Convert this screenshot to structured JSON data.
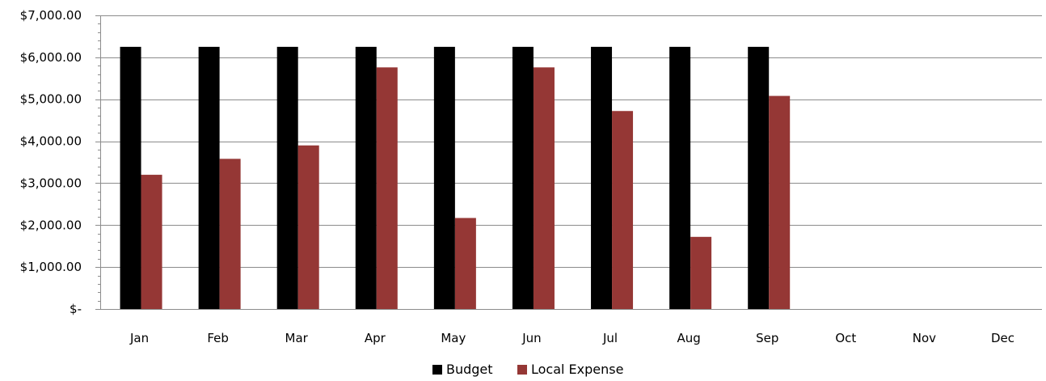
{
  "chart_data": {
    "type": "bar",
    "title": "",
    "xlabel": "",
    "ylabel": "",
    "categories": [
      "Jan",
      "Feb",
      "Mar",
      "Apr",
      "May",
      "Jun",
      "Jul",
      "Aug",
      "Sep",
      "Oct",
      "Nov",
      "Dec"
    ],
    "series": [
      {
        "name": "Budget",
        "color": "#000000",
        "values": [
          6250,
          6250,
          6250,
          6250,
          6250,
          6250,
          6250,
          6250,
          6250,
          null,
          null,
          null
        ]
      },
      {
        "name": "Local Expense",
        "color": "#953735",
        "values": [
          3200,
          3580,
          3900,
          5760,
          2170,
          5760,
          4720,
          1720,
          5080,
          null,
          null,
          null
        ]
      }
    ],
    "ylim": [
      0,
      7000
    ],
    "y_ticks": [
      {
        "value": 0,
        "label": "$-"
      },
      {
        "value": 1000,
        "label": "$1,000.00"
      },
      {
        "value": 2000,
        "label": "$2,000.00"
      },
      {
        "value": 3000,
        "label": "$3,000.00"
      },
      {
        "value": 4000,
        "label": "$4,000.00"
      },
      {
        "value": 5000,
        "label": "$5,000.00"
      },
      {
        "value": 6000,
        "label": "$6,000.00"
      },
      {
        "value": 7000,
        "label": "$7,000.00"
      }
    ],
    "y_minor_step": 200,
    "grid": true,
    "legend_position": "bottom"
  }
}
